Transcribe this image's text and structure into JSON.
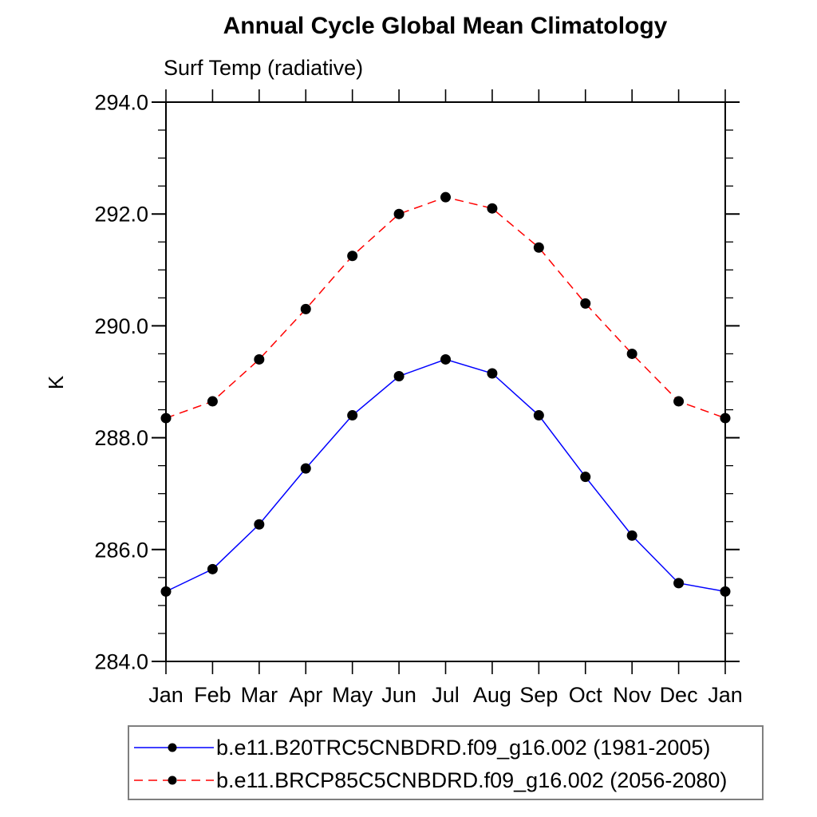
{
  "chart_data": {
    "type": "line",
    "title": "Annual Cycle Global Mean Climatology",
    "subtitle": "Surf Temp (radiative)",
    "ylabel": "K",
    "xlabel": "",
    "ylim": [
      284.0,
      294.0
    ],
    "y_major_step": 2.0,
    "y_minor_step": 0.5,
    "y_tick_labels": [
      "284.0",
      "286.0",
      "288.0",
      "290.0",
      "292.0",
      "294.0"
    ],
    "categories": [
      "Jan",
      "Feb",
      "Mar",
      "Apr",
      "May",
      "Jun",
      "Jul",
      "Aug",
      "Sep",
      "Oct",
      "Nov",
      "Dec",
      "Jan"
    ],
    "grid": false,
    "legend_position": "bottom",
    "marker": "filled-circle",
    "marker_color": "#000000",
    "axis_color": "#000000",
    "series": [
      {
        "name": "b.e11.B20TRC5CNBDRD.f09_g16.002 (1981-2005)",
        "color": "#0000ff",
        "style": "solid",
        "dash": "",
        "values": [
          285.25,
          285.65,
          286.45,
          287.45,
          288.4,
          289.1,
          289.4,
          289.15,
          288.4,
          287.3,
          286.25,
          285.4,
          285.25
        ]
      },
      {
        "name": "b.e11.BRCP85C5CNBDRD.f09_g16.002 (2056-2080)",
        "color": "#ff0000",
        "style": "dashed",
        "dash": "11 7",
        "values": [
          288.35,
          288.65,
          289.4,
          290.3,
          291.25,
          292.0,
          292.3,
          292.1,
          291.4,
          290.4,
          289.5,
          288.65,
          288.35
        ]
      }
    ]
  }
}
